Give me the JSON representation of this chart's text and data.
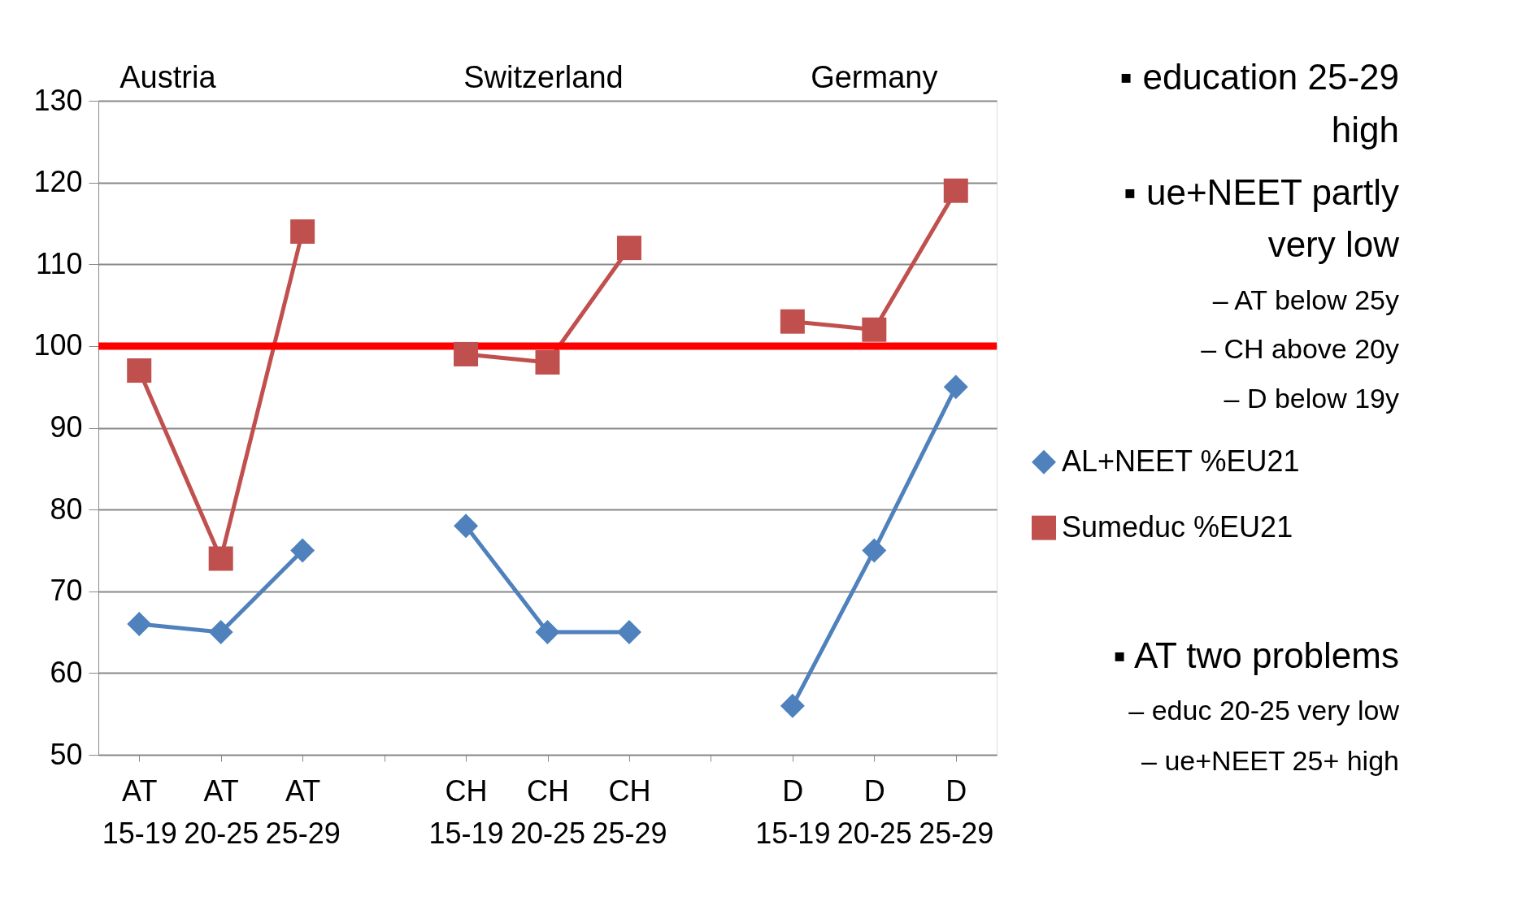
{
  "chart_data": {
    "type": "line",
    "categories": [
      "AT 15-19",
      "AT 20-25",
      "AT 25-29",
      null,
      "CH 15-19",
      "CH 20-25",
      "CH 25-29",
      null,
      "D 15-19",
      "D 20-25",
      "D 25-29"
    ],
    "series": [
      {
        "name": "AL+NEET %EU21",
        "color": "#4f81bd",
        "marker": "diamond",
        "values": [
          66,
          65,
          75,
          null,
          78,
          65,
          65,
          null,
          56,
          75,
          95
        ]
      },
      {
        "name": "Sumeduc %EU21",
        "color": "#c0504d",
        "marker": "square",
        "values": [
          97,
          74,
          114,
          null,
          99,
          98,
          112,
          null,
          103,
          102,
          119
        ]
      }
    ],
    "ylim": [
      50,
      130
    ],
    "yticks": [
      50,
      60,
      70,
      80,
      90,
      100,
      110,
      120,
      130
    ],
    "grid": "y",
    "legend": "right",
    "line_style": "solid",
    "ref_lines": [
      {
        "axis": "y",
        "value": 100,
        "color": "#ff0000"
      }
    ],
    "annotations": [
      "Austria",
      "Switzerland",
      "Germany",
      "▪ education 25-29",
      "high",
      "▪ ue+NEET partly",
      "very low",
      "– AT below 25y",
      "– CH above 20y",
      "– D below 19y",
      "▪ AT two problems",
      "– educ 20-25 very low",
      "– ue+NEET 25+ high"
    ]
  }
}
